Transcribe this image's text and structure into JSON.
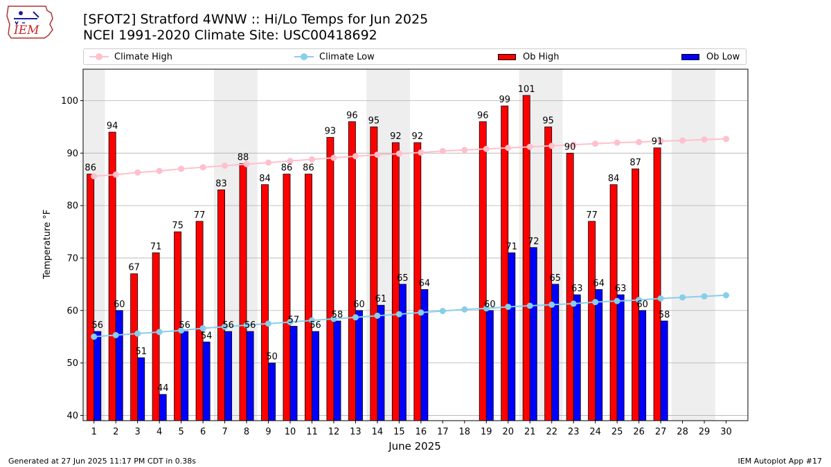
{
  "header": {
    "title_line1": "[SFOT2] Stratford 4WNW :: Hi/Lo Temps for Jun 2025",
    "title_line2": "NCEI 1991-2020 Climate Site: USC00418692",
    "logo_text": "IEM"
  },
  "legend": {
    "climate_high": "Climate High",
    "climate_low": "Climate Low",
    "ob_high": "Ob High",
    "ob_low": "Ob Low"
  },
  "footer": {
    "generated": "Generated at 27 Jun 2025 11:17 PM CDT in 0.38s",
    "app": "IEM Autoplot App #17"
  },
  "colors": {
    "ob_high": "#ff0000",
    "ob_low": "#0000ff",
    "climate_high": "#ffc0cb",
    "climate_low": "#87ceeb",
    "weekend_band": "#eeeeee",
    "grid": "#b0b0b0"
  },
  "chart_data": {
    "type": "bar",
    "xlabel": "June 2025",
    "ylabel": "Temperature °F",
    "ylim": [
      39,
      106
    ],
    "yticks": [
      40,
      50,
      60,
      70,
      80,
      90,
      100
    ],
    "grid": "horizontal",
    "legend_placement": "top",
    "days": [
      1,
      2,
      3,
      4,
      5,
      6,
      7,
      8,
      9,
      10,
      11,
      12,
      13,
      14,
      15,
      16,
      17,
      18,
      19,
      20,
      21,
      22,
      23,
      24,
      25,
      26,
      27,
      28,
      29,
      30
    ],
    "weekend_bands": [
      [
        1,
        1
      ],
      [
        7,
        8
      ],
      [
        14,
        15
      ],
      [
        21,
        22
      ],
      [
        28,
        29
      ]
    ],
    "ob_high": [
      86,
      94,
      67,
      71,
      75,
      77,
      83,
      88,
      84,
      86,
      86,
      93,
      96,
      95,
      92,
      92,
      null,
      null,
      96,
      99,
      101,
      95,
      90,
      77,
      84,
      87,
      91,
      null,
      null,
      null
    ],
    "ob_low": [
      56,
      60,
      51,
      44,
      56,
      54,
      56,
      56,
      50,
      57,
      56,
      58,
      60,
      61,
      65,
      64,
      null,
      null,
      60,
      71,
      72,
      65,
      63,
      64,
      63,
      60,
      58,
      null,
      null,
      null
    ],
    "climate_high": [
      85.6,
      85.9,
      86.3,
      86.6,
      87.0,
      87.3,
      87.6,
      87.9,
      88.2,
      88.5,
      88.8,
      89.1,
      89.4,
      89.7,
      89.9,
      90.1,
      90.4,
      90.6,
      90.8,
      91.0,
      91.2,
      91.4,
      91.6,
      91.8,
      92.0,
      92.1,
      92.3,
      92.4,
      92.6,
      92.7
    ],
    "climate_low": [
      55.0,
      55.3,
      55.6,
      55.9,
      56.2,
      56.6,
      56.9,
      57.2,
      57.5,
      57.8,
      58.1,
      58.4,
      58.7,
      59.0,
      59.3,
      59.6,
      59.9,
      60.2,
      60.4,
      60.7,
      60.9,
      61.1,
      61.3,
      61.6,
      61.8,
      62.0,
      62.3,
      62.5,
      62.7,
      62.9
    ]
  }
}
